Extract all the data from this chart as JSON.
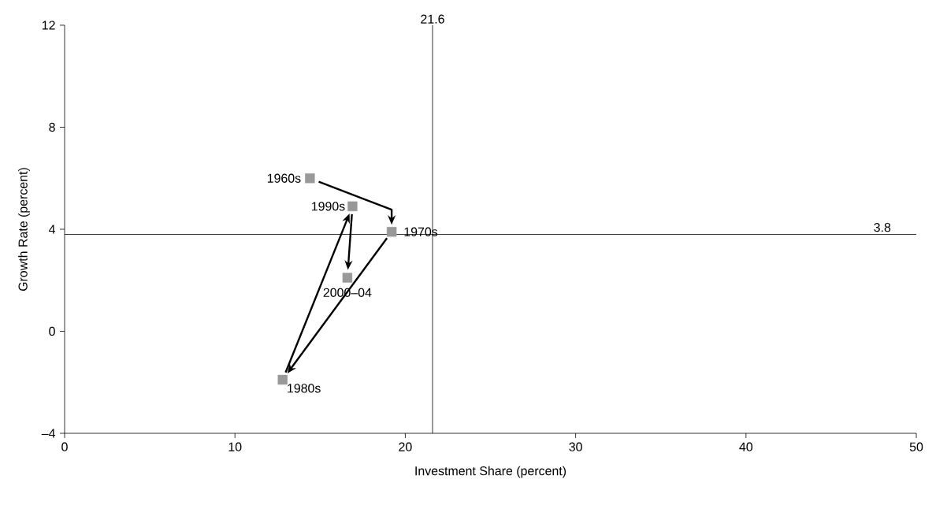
{
  "chart_data": {
    "type": "scatter",
    "xlabel": "Investment Share (percent)",
    "ylabel": "Growth Rate (percent)",
    "x": [
      14.4,
      19.2,
      12.8,
      16.9,
      16.6
    ],
    "values": [
      6.0,
      3.9,
      -1.9,
      4.9,
      2.1
    ],
    "color": "#999999",
    "marker": "square",
    "grid": false,
    "xlim": [
      0,
      50
    ],
    "xticks": [
      0,
      10,
      20,
      30,
      40,
      50
    ],
    "ylim": [
      -4,
      12
    ],
    "yticks": [
      {
        "value": -4,
        "label": "–4"
      },
      0,
      4,
      8,
      12
    ],
    "ref_lines": [
      {
        "axis": "x",
        "value": 21.6,
        "label": "21.6",
        "color": "#000000"
      },
      {
        "axis": "y",
        "value": 3.8,
        "label": "3.8",
        "color": "#000000"
      }
    ],
    "annotations": [
      {
        "text": "1960s",
        "x": 14.4,
        "y": 6.0
      },
      {
        "text": "1970s",
        "x": 19.2,
        "y": 3.9
      },
      {
        "text": "1980s",
        "x": 12.8,
        "y": -1.9
      },
      {
        "text": "1990s",
        "x": 16.9,
        "y": 4.9
      },
      {
        "text": "2000–04",
        "x": 16.6,
        "y": 2.1
      }
    ]
  }
}
